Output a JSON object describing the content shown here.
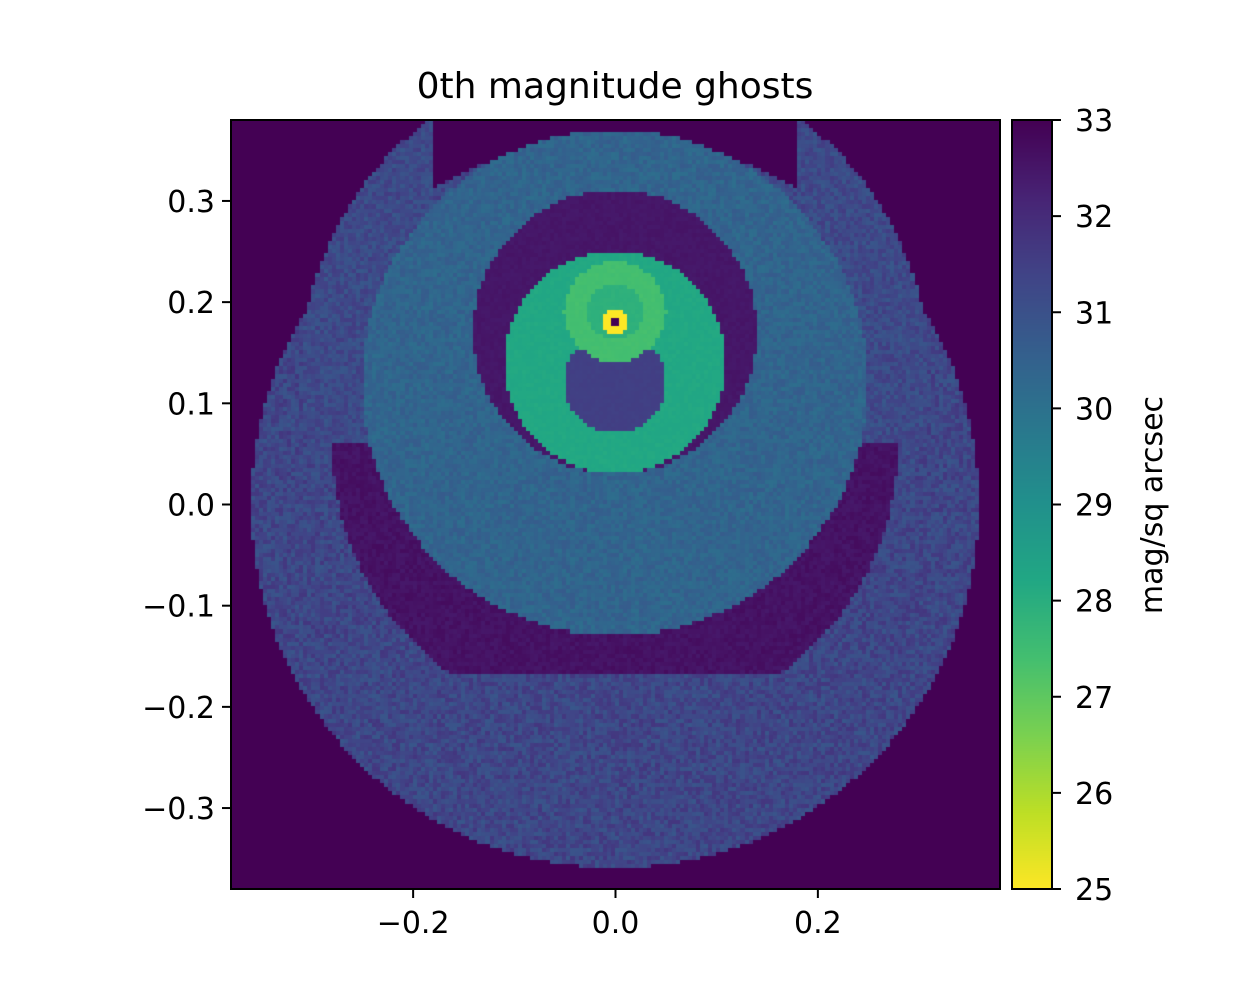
{
  "chart_data": {
    "type": "heatmap",
    "title": "0th magnitude ghosts",
    "xlabel": "",
    "ylabel": "",
    "xlim": [
      -0.38,
      0.38
    ],
    "ylim": [
      -0.38,
      0.38
    ],
    "x_ticks": [
      -0.2,
      0.0,
      0.2
    ],
    "x_tick_labels": [
      "−0.2",
      "0.0",
      "0.2"
    ],
    "y_ticks": [
      -0.3,
      -0.2,
      -0.1,
      0.0,
      0.1,
      0.2,
      0.3
    ],
    "y_tick_labels": [
      "−0.3",
      "−0.2",
      "−0.1",
      "0.0",
      "0.1",
      "0.2",
      "0.3"
    ],
    "grid": false,
    "colormap": "viridis_r",
    "colorbar": {
      "label": "mag/sq arcsec",
      "range": [
        25,
        33
      ],
      "ticks": [
        25,
        26,
        27,
        28,
        29,
        30,
        31,
        32,
        33
      ],
      "tick_labels": [
        "25",
        "26",
        "27",
        "28",
        "29",
        "30",
        "31",
        "32",
        "33"
      ]
    },
    "background_value": 33,
    "source_position": [
      0.0,
      0.18
    ],
    "ghost_components": [
      {
        "name": "outer-diffuse-disk",
        "center": [
          0.0,
          -0.0
        ],
        "radius": 0.36,
        "value": 31.3
      },
      {
        "name": "upper-wide-arc",
        "center": [
          0.0,
          0.13
        ],
        "radius": 0.31,
        "value": 31.2
      },
      {
        "name": "dark-crescent",
        "center": [
          0.0,
          0.06
        ],
        "radius": 0.28,
        "value": 32.6
      },
      {
        "name": "middle-ring",
        "center": [
          0.0,
          0.12
        ],
        "radius": 0.25,
        "value": 30.4
      },
      {
        "name": "dark-annulus",
        "center": [
          0.0,
          0.17
        ],
        "radius": 0.14,
        "value": 32.5
      },
      {
        "name": "inner-disk",
        "center": [
          0.0,
          0.14
        ],
        "radius": 0.11,
        "value": 28.2
      },
      {
        "name": "inner-hole",
        "center": [
          0.0,
          0.12
        ],
        "radius": 0.05,
        "value": 31.5
      },
      {
        "name": "small-ring",
        "center": [
          0.0,
          0.19
        ],
        "radius": 0.05,
        "value": 27.4
      },
      {
        "name": "source-core",
        "center": [
          0.0,
          0.18
        ],
        "radius": 0.01,
        "value": 25.0
      }
    ]
  }
}
